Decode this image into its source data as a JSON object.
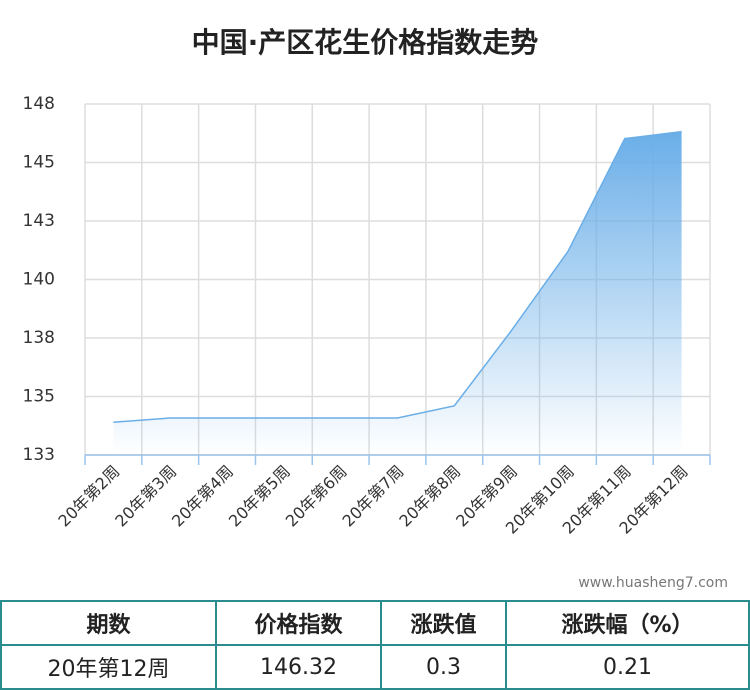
{
  "chart_data": {
    "type": "area",
    "title": "中国·产区花生价格指数走势",
    "categories": [
      "20年第2周",
      "20年第3周",
      "20年第4周",
      "20年第5周",
      "20年第6周",
      "20年第7周",
      "20年第8周",
      "20年第9周",
      "20年第10周",
      "20年第11周",
      "20年第12周"
    ],
    "series": [
      {
        "name": "价格指数",
        "color": "#6aaee8",
        "values": [
          133.9,
          134.08,
          134.08,
          134.08,
          134.08,
          134.08,
          134.6,
          137.8,
          141.2,
          146.02,
          146.32
        ]
      }
    ],
    "ylim": [
      132.5,
      147.5
    ],
    "yticks": [
      {
        "value": 132.5,
        "label": "133"
      },
      {
        "value": 135,
        "label": "135"
      },
      {
        "value": 137.5,
        "label": "138"
      },
      {
        "value": 140,
        "label": "140"
      },
      {
        "value": 142.5,
        "label": "143"
      },
      {
        "value": 145,
        "label": "145"
      },
      {
        "value": 147.5,
        "label": "148"
      }
    ],
    "grid": true
  },
  "watermark": "www.huasheng7.com",
  "table": {
    "header": [
      "期数",
      "价格指数",
      "涨跌值",
      "涨跌幅（%）"
    ],
    "rows": [
      [
        "20年第12周",
        "146.32",
        "0.3",
        "0.21"
      ]
    ]
  }
}
